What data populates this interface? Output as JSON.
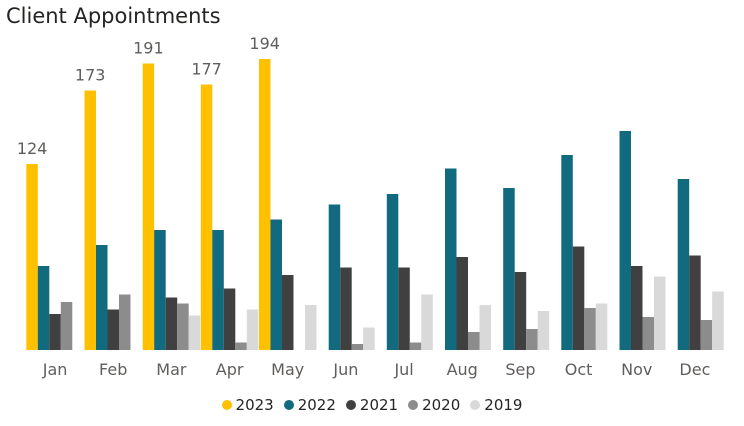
{
  "chart_data": {
    "type": "bar",
    "title": "Client Appointments",
    "categories": [
      "Jan",
      "Feb",
      "Mar",
      "Apr",
      "May",
      "Jun",
      "Jul",
      "Aug",
      "Sep",
      "Oct",
      "Nov",
      "Dec"
    ],
    "ylim": [
      0,
      200
    ],
    "grid": false,
    "legend_position": "bottom-center",
    "data_labels_series": "2023",
    "series": [
      {
        "name": "2023",
        "color": "#F2C80F",
        "values": [
          124,
          173,
          191,
          177,
          194,
          null,
          null,
          null,
          null,
          null,
          null,
          null
        ]
      },
      {
        "name": "2022",
        "color": "#118DFF",
        "values": [
          56,
          70,
          80,
          80,
          87,
          97,
          104,
          121,
          108,
          130,
          146,
          114
        ]
      },
      {
        "name": "2021",
        "color": "#404040",
        "values": [
          24,
          27,
          35,
          41,
          50,
          55,
          55,
          62,
          52,
          69,
          56,
          63
        ]
      },
      {
        "name": "2020",
        "color": "#8C8C8C",
        "values": [
          32,
          37,
          31,
          5,
          null,
          4,
          5,
          12,
          14,
          28,
          22,
          20
        ]
      },
      {
        "name": "2019",
        "color": "#D9D9D9",
        "values": [
          null,
          null,
          23,
          27,
          30,
          15,
          37,
          30,
          26,
          31,
          49,
          39
        ]
      }
    ]
  }
}
